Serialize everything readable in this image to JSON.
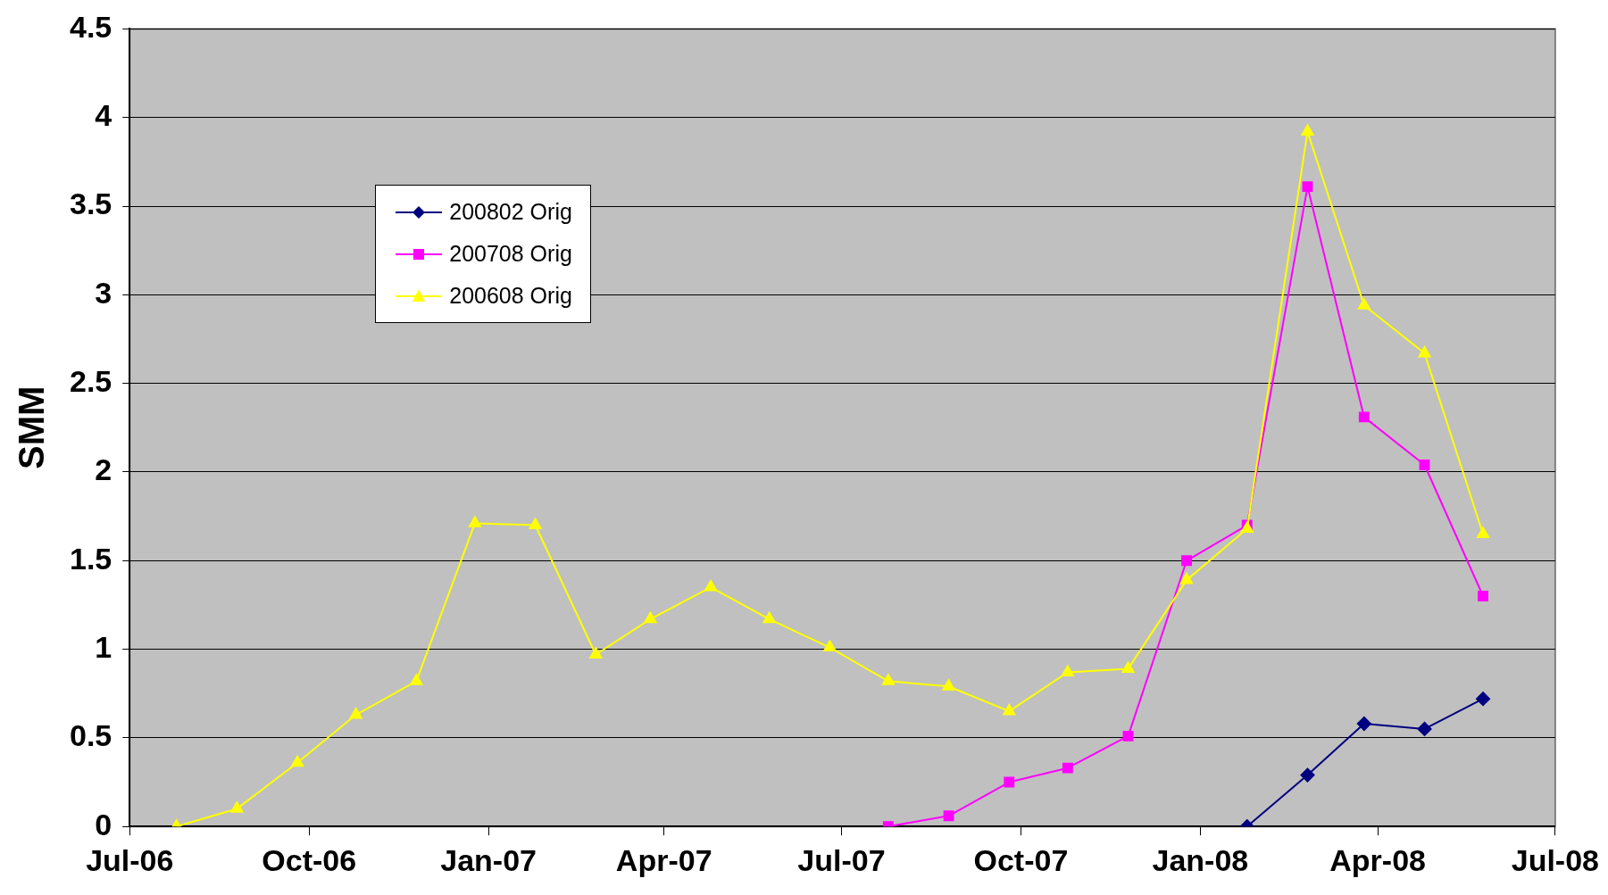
{
  "chart_data": {
    "type": "line",
    "ylabel": "SMM",
    "xlim": [
      "2006-07-01",
      "2008-07-01"
    ],
    "xticks": [
      {
        "value": "2006-07-01",
        "label": "Jul-06"
      },
      {
        "value": "2006-10-01",
        "label": "Oct-06"
      },
      {
        "value": "2007-01-01",
        "label": "Jan-07"
      },
      {
        "value": "2007-04-01",
        "label": "Apr-07"
      },
      {
        "value": "2007-07-01",
        "label": "Jul-07"
      },
      {
        "value": "2007-10-01",
        "label": "Oct-07"
      },
      {
        "value": "2008-01-01",
        "label": "Jan-08"
      },
      {
        "value": "2008-04-01",
        "label": "Apr-08"
      },
      {
        "value": "2008-07-01",
        "label": "Jul-08"
      }
    ],
    "ylim": [
      0,
      4.5
    ],
    "yticks": [
      0,
      0.5,
      1,
      1.5,
      2,
      2.5,
      3,
      3.5,
      4,
      4.5
    ],
    "grid": "y",
    "legend": "top left",
    "series": [
      {
        "name": "200802 Orig",
        "color": "#000080",
        "marker": "diamond",
        "x": [
          "2008-01-25",
          "2008-02-25",
          "2008-03-25",
          "2008-04-25",
          "2008-05-25"
        ],
        "values": [
          0,
          0.29,
          0.58,
          0.55,
          0.72
        ]
      },
      {
        "name": "200708 Orig",
        "color": "#ff00ff",
        "marker": "square",
        "x": [
          "2007-07-25",
          "2007-08-25",
          "2007-09-25",
          "2007-10-25",
          "2007-11-25",
          "2007-12-25",
          "2008-01-25",
          "2008-02-25",
          "2008-03-25",
          "2008-04-25",
          "2008-05-25"
        ],
        "values": [
          0,
          0.06,
          0.25,
          0.33,
          0.51,
          1.5,
          1.7,
          3.61,
          2.31,
          2.04,
          1.3
        ]
      },
      {
        "name": "200608 Orig",
        "color": "#ffff00",
        "marker": "triangle",
        "x": [
          "2006-07-25",
          "2006-08-25",
          "2006-09-25",
          "2006-10-25",
          "2006-11-25",
          "2006-12-25",
          "2007-01-25",
          "2007-02-25",
          "2007-03-25",
          "2007-04-25",
          "2007-05-25",
          "2007-06-25",
          "2007-07-25",
          "2007-08-25",
          "2007-09-25",
          "2007-10-25",
          "2007-11-25",
          "2007-12-25",
          "2008-01-25",
          "2008-02-25",
          "2008-03-25",
          "2008-04-25",
          "2008-05-25"
        ],
        "values": [
          0,
          0.1,
          0.36,
          0.63,
          0.82,
          1.71,
          1.7,
          0.97,
          1.17,
          1.35,
          1.17,
          1.01,
          0.82,
          0.79,
          0.65,
          0.87,
          0.89,
          1.39,
          1.68,
          3.92,
          2.94,
          2.67,
          1.65
        ]
      }
    ]
  }
}
